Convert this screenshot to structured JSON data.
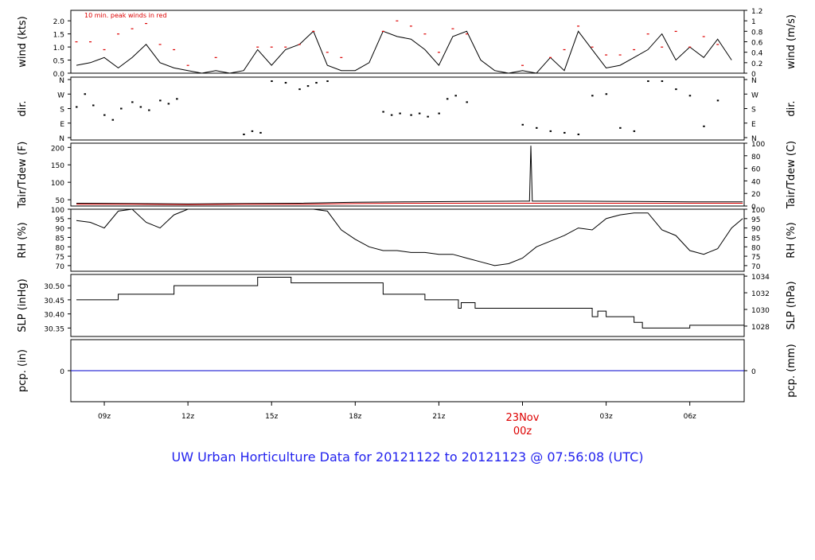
{
  "title": "UW Urban Horticulture Data for 20121122  to  20121123 @ 07:56:08  (UTC)",
  "chart_data": [
    {
      "type": "line",
      "ylabel_left": "wind (kts)",
      "ylabel_right": "wind (m/s)",
      "annotation": "10 min. peak winds in red",
      "ylim_left": [
        0,
        2.4
      ],
      "ylim_right": [
        0,
        1.2
      ],
      "yticks_left": [
        "0.0",
        "0.5",
        "1.0",
        "1.5",
        "2.0"
      ],
      "yticks_right": [
        "0",
        "0.2",
        "0.4",
        "0.6",
        "0.8",
        "1",
        "1.2"
      ],
      "series": [
        {
          "color": "#000000",
          "x": [
            8,
            8.5,
            9,
            9.5,
            10,
            10.5,
            11,
            11.5,
            12,
            12.5,
            13,
            13.5,
            14,
            14.5,
            15,
            15.5,
            16,
            16.5,
            17,
            17.5,
            18,
            18.5,
            19,
            19.5,
            20,
            20.5,
            21,
            21.5,
            22,
            22.5,
            23,
            23.5,
            24,
            24.5,
            25,
            25.5,
            26,
            26.5,
            27,
            27.5,
            28,
            28.5,
            29,
            29.5,
            30,
            30.5,
            31,
            31.5
          ],
          "values": [
            0.3,
            0.4,
            0.6,
            0.2,
            0.6,
            1.1,
            0.4,
            0.2,
            0.1,
            0.0,
            0.1,
            0.0,
            0.1,
            0.9,
            0.3,
            0.9,
            1.1,
            1.6,
            0.3,
            0.1,
            0.1,
            0.4,
            1.6,
            1.4,
            1.3,
            0.9,
            0.3,
            1.4,
            1.6,
            0.5,
            0.1,
            0.0,
            0.1,
            0.0,
            0.6,
            0.1,
            1.6,
            0.9,
            0.2,
            0.3,
            0.6,
            0.9,
            1.5,
            0.5,
            1.0,
            0.6,
            1.3,
            0.5
          ]
        },
        {
          "color": "#dd0000",
          "x": [
            8,
            8.5,
            9,
            9.5,
            10,
            10.5,
            11,
            11.5,
            12,
            13,
            14.5,
            15,
            15.5,
            16,
            16.5,
            17,
            17.5,
            19,
            19.5,
            20,
            20.5,
            21,
            21.5,
            22,
            24,
            25,
            25.5,
            26,
            26.5,
            27,
            27.5,
            28,
            28.5,
            29,
            29.5,
            30,
            30.5,
            31
          ],
          "values": [
            1.2,
            1.2,
            0.9,
            1.5,
            1.7,
            1.9,
            1.1,
            0.9,
            0.3,
            0.6,
            1.0,
            1.0,
            1.0,
            1.1,
            1.6,
            0.8,
            0.6,
            1.6,
            2.0,
            1.8,
            1.5,
            0.8,
            1.7,
            1.5,
            0.3,
            0.6,
            0.9,
            1.8,
            1.0,
            0.7,
            0.7,
            0.9,
            1.5,
            1.0,
            1.6,
            1.0,
            1.4,
            1.1
          ]
        }
      ]
    },
    {
      "type": "scatter",
      "ylabel_left": "dir.",
      "ylabel_right": "dir.",
      "yticks": [
        "N",
        "E",
        "S",
        "W",
        "N"
      ],
      "x": [
        8,
        8.3,
        8.6,
        9,
        9.3,
        9.6,
        10,
        10.3,
        10.6,
        11,
        11.3,
        11.6,
        14,
        14.3,
        14.6,
        15,
        15.5,
        16,
        16.3,
        16.6,
        17,
        19,
        19.3,
        19.6,
        20,
        20.3,
        20.6,
        21,
        21.3,
        21.6,
        22,
        24,
        24.5,
        25,
        25.5,
        26,
        26.5,
        27,
        27.5,
        28,
        28.5,
        29,
        29.5,
        30,
        30.5,
        31
      ],
      "values": [
        190,
        270,
        200,
        140,
        110,
        180,
        220,
        190,
        170,
        230,
        210,
        240,
        20,
        40,
        30,
        350,
        340,
        300,
        320,
        340,
        350,
        160,
        140,
        150,
        140,
        150,
        130,
        150,
        240,
        260,
        220,
        80,
        60,
        40,
        30,
        20,
        260,
        270,
        60,
        40,
        350,
        350,
        300,
        260,
        70,
        230
      ]
    },
    {
      "type": "line",
      "ylabel_left": "Tair/Tdew (F)",
      "ylabel_right": "Tair/Tdew (C)",
      "ylim_left": [
        32,
        212
      ],
      "ylim_right": [
        0,
        100
      ],
      "yticks_left": [
        "50",
        "100",
        "150",
        "200"
      ],
      "yticks_right": [
        "0",
        "20",
        "40",
        "60",
        "80",
        "100"
      ],
      "series": [
        {
          "color": "#000000",
          "x": [
            8,
            10,
            12,
            14,
            16,
            18,
            20,
            22,
            24,
            24.25,
            24.3,
            24.35,
            24.4,
            26,
            28,
            30,
            31.9
          ],
          "values": [
            40,
            39,
            38,
            39,
            40,
            43,
            44,
            45,
            46,
            46,
            205,
            46,
            46,
            46,
            45,
            44,
            44
          ]
        },
        {
          "color": "#dd0000",
          "x": [
            8,
            10,
            12,
            14,
            16,
            18,
            20,
            22,
            24,
            26,
            28,
            30,
            31.9
          ],
          "values": [
            37,
            37,
            36,
            37,
            37,
            39,
            40,
            40,
            40,
            40,
            40,
            40,
            40
          ]
        }
      ]
    },
    {
      "type": "line",
      "ylabel_left": "RH (%)",
      "ylabel_right": "RH (%)",
      "ylim": [
        67,
        100
      ],
      "yticks": [
        "70",
        "75",
        "80",
        "85",
        "90",
        "95",
        "100"
      ],
      "series": [
        {
          "color": "#000000",
          "x": [
            8,
            8.5,
            9,
            9.5,
            10,
            10.5,
            11,
            11.5,
            12,
            13,
            14,
            15,
            16,
            16.5,
            17,
            17.5,
            18,
            18.5,
            19,
            19.5,
            20,
            20.5,
            21,
            21.5,
            22,
            22.5,
            23,
            23.5,
            24,
            24.5,
            25,
            25.5,
            26,
            26.5,
            27,
            27.5,
            28,
            28.5,
            29,
            29.5,
            30,
            30.5,
            31,
            31.5,
            31.9
          ],
          "values": [
            94,
            93,
            90,
            99,
            100,
            93,
            90,
            97,
            100,
            100,
            100,
            100,
            100,
            100,
            99,
            89,
            84,
            80,
            78,
            78,
            77,
            77,
            76,
            76,
            74,
            72,
            70,
            71,
            74,
            80,
            83,
            86,
            90,
            89,
            95,
            97,
            98,
            98,
            89,
            86,
            78,
            76,
            79,
            90,
            95
          ]
        }
      ]
    },
    {
      "type": "line",
      "ylabel_left": "SLP (inHg)",
      "ylabel_right": "SLP (hPa)",
      "ylim_left": [
        30.32,
        30.54
      ],
      "yticks_left": [
        "30.35",
        "30.40",
        "30.45",
        "30.50"
      ],
      "yticks_right": [
        "1028",
        "1030",
        "1032",
        "1034"
      ],
      "series": [
        {
          "color": "#000000",
          "x": [
            8,
            9.5,
            11.5,
            14.5,
            15.7,
            19,
            20.5,
            21.7,
            21.8,
            21.9,
            22.3,
            26.5,
            26.7,
            27,
            28,
            28.3,
            30,
            31.9
          ],
          "values": [
            30.45,
            30.47,
            30.5,
            30.53,
            30.51,
            30.47,
            30.45,
            30.42,
            30.44,
            30.44,
            30.42,
            30.39,
            30.41,
            30.39,
            30.37,
            30.35,
            30.36,
            30.36
          ]
        }
      ]
    },
    {
      "type": "line",
      "ylabel_left": "pcp. (in)",
      "ylabel_right": "pcp. (mm)",
      "yticks_left": [
        "0"
      ],
      "yticks_right": [
        "0"
      ],
      "series": [
        {
          "color": "#0000cc",
          "x": [
            8,
            31.9
          ],
          "values": [
            0,
            0
          ]
        }
      ]
    }
  ],
  "x_axis": {
    "ticks": [
      "09z",
      "12z",
      "15z",
      "18z",
      "21z",
      "03z",
      "06z"
    ],
    "midnight_date": "23Nov",
    "midnight_hour": "00z"
  }
}
